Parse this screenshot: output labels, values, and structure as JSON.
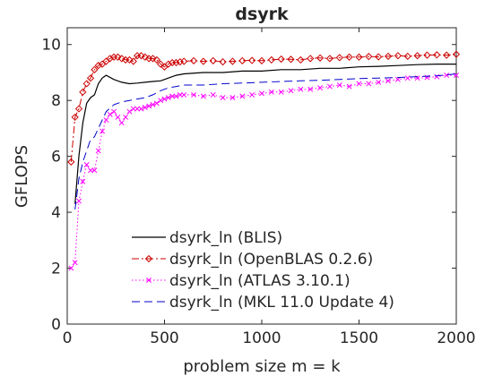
{
  "chart_data": {
    "type": "line",
    "title": "dsyrk",
    "xlabel": "problem size m = k",
    "ylabel": "GFLOPS",
    "xlim": [
      0,
      2000
    ],
    "ylim": [
      0,
      10.6
    ],
    "xticks": [
      0,
      500,
      1000,
      1500,
      2000
    ],
    "yticks": [
      0,
      2,
      4,
      6,
      8,
      10
    ],
    "grid": false,
    "legend_position": "bottom-right",
    "series": [
      {
        "name": "dsyrk_ln (BLIS)",
        "color": "#000000",
        "style": "solid",
        "marker": "none",
        "x": [
          40,
          60,
          80,
          100,
          120,
          140,
          160,
          180,
          200,
          240,
          280,
          320,
          360,
          400,
          440,
          480,
          520,
          560,
          600,
          700,
          800,
          900,
          1000,
          1100,
          1200,
          1300,
          1400,
          1500,
          1600,
          1700,
          1800,
          1900,
          2000
        ],
        "y": [
          4.3,
          6.0,
          7.2,
          7.9,
          8.1,
          8.2,
          8.6,
          8.8,
          8.9,
          8.75,
          8.65,
          8.6,
          8.62,
          8.65,
          8.68,
          8.7,
          8.8,
          8.9,
          8.95,
          9.0,
          9.0,
          9.05,
          9.05,
          9.1,
          9.1,
          9.15,
          9.15,
          9.2,
          9.22,
          9.25,
          9.28,
          9.3,
          9.3
        ]
      },
      {
        "name": "dsyrk_ln (OpenBLAS 0.2.6)",
        "color": "#cc0000",
        "style": "dashdot",
        "marker": "diamond",
        "x": [
          20,
          40,
          60,
          80,
          100,
          120,
          140,
          160,
          180,
          200,
          220,
          240,
          260,
          280,
          300,
          320,
          340,
          360,
          380,
          400,
          420,
          440,
          460,
          480,
          500,
          520,
          540,
          560,
          580,
          600,
          650,
          700,
          750,
          800,
          850,
          900,
          950,
          1000,
          1050,
          1100,
          1150,
          1200,
          1250,
          1300,
          1350,
          1400,
          1450,
          1500,
          1550,
          1600,
          1650,
          1700,
          1750,
          1800,
          1850,
          1900,
          1950,
          2000
        ],
        "y": [
          5.8,
          7.4,
          7.7,
          8.3,
          8.6,
          8.8,
          9.1,
          9.25,
          9.3,
          9.4,
          9.5,
          9.55,
          9.55,
          9.5,
          9.45,
          9.45,
          9.4,
          9.6,
          9.6,
          9.55,
          9.5,
          9.5,
          9.45,
          9.3,
          9.2,
          9.3,
          9.35,
          9.35,
          9.38,
          9.4,
          9.42,
          9.4,
          9.42,
          9.38,
          9.4,
          9.42,
          9.43,
          9.42,
          9.45,
          9.48,
          9.47,
          9.45,
          9.5,
          9.52,
          9.5,
          9.53,
          9.55,
          9.55,
          9.57,
          9.56,
          9.58,
          9.6,
          9.58,
          9.6,
          9.62,
          9.63,
          9.62,
          9.65
        ]
      },
      {
        "name": "dsyrk_ln (ATLAS 3.10.1)",
        "color": "#ff00ff",
        "style": "dotted",
        "marker": "x",
        "x": [
          20,
          40,
          60,
          80,
          100,
          120,
          140,
          160,
          180,
          200,
          220,
          240,
          260,
          280,
          300,
          320,
          340,
          360,
          380,
          400,
          420,
          440,
          460,
          480,
          500,
          520,
          540,
          560,
          580,
          600,
          650,
          700,
          750,
          800,
          850,
          900,
          950,
          1000,
          1050,
          1100,
          1150,
          1200,
          1250,
          1300,
          1350,
          1400,
          1450,
          1500,
          1550,
          1600,
          1650,
          1700,
          1750,
          1800,
          1850,
          1900,
          1950,
          2000
        ],
        "y": [
          2.0,
          2.2,
          4.4,
          5.1,
          5.7,
          5.5,
          5.5,
          6.2,
          6.9,
          7.3,
          7.5,
          7.6,
          7.4,
          7.2,
          7.4,
          7.6,
          7.7,
          7.7,
          7.7,
          7.75,
          7.8,
          7.85,
          7.9,
          8.0,
          8.05,
          8.1,
          8.15,
          8.15,
          8.2,
          8.2,
          8.2,
          8.15,
          8.2,
          8.1,
          8.1,
          8.15,
          8.2,
          8.25,
          8.3,
          8.3,
          8.35,
          8.4,
          8.4,
          8.45,
          8.5,
          8.55,
          8.5,
          8.6,
          8.6,
          8.65,
          8.7,
          8.75,
          8.8,
          8.8,
          8.82,
          8.85,
          8.9,
          8.9
        ]
      },
      {
        "name": "dsyrk_ln (MKL 11.0 Update 4)",
        "color": "#0000cc",
        "style": "dashed",
        "marker": "none",
        "x": [
          40,
          60,
          80,
          100,
          120,
          140,
          160,
          180,
          200,
          240,
          280,
          320,
          360,
          400,
          440,
          480,
          520,
          560,
          600,
          700,
          800,
          900,
          1000,
          1100,
          1200,
          1300,
          1400,
          1500,
          1600,
          1700,
          1800,
          1900,
          2000
        ],
        "y": [
          4.1,
          5.2,
          5.8,
          6.2,
          6.6,
          6.7,
          7.0,
          7.3,
          7.6,
          7.85,
          7.95,
          8.0,
          8.05,
          8.1,
          8.2,
          8.35,
          8.45,
          8.5,
          8.55,
          8.55,
          8.6,
          8.62,
          8.65,
          8.68,
          8.7,
          8.72,
          8.75,
          8.78,
          8.8,
          8.82,
          8.85,
          8.88,
          8.95
        ]
      }
    ]
  }
}
